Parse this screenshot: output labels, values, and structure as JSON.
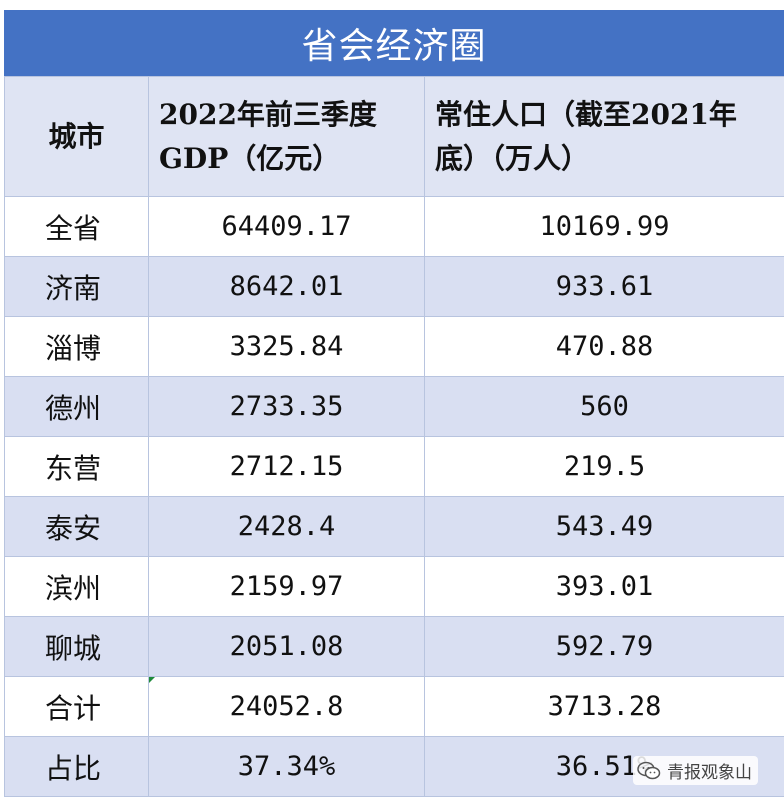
{
  "title": "省会经济圈",
  "headers": {
    "city": "城市",
    "gdp_line1": "2022年前三季度",
    "gdp_line2": "GDP（亿元）",
    "pop_line1": "常住人口（截至2021年",
    "pop_line2": "底）（万人）"
  },
  "rows": [
    {
      "city": "全省",
      "gdp": "64409.17",
      "pop": "10169.99"
    },
    {
      "city": "济南",
      "gdp": "8642.01",
      "pop": "933.61"
    },
    {
      "city": "淄博",
      "gdp": "3325.84",
      "pop": "470.88"
    },
    {
      "city": "德州",
      "gdp": "2733.35",
      "pop": "560"
    },
    {
      "city": "东营",
      "gdp": "2712.15",
      "pop": "219.5"
    },
    {
      "city": "泰安",
      "gdp": "2428.4",
      "pop": "543.49"
    },
    {
      "city": "滨州",
      "gdp": "2159.97",
      "pop": "393.01"
    },
    {
      "city": "聊城",
      "gdp": "2051.08",
      "pop": "592.79"
    },
    {
      "city": "合计",
      "gdp": "24052.8",
      "pop": "3713.28"
    },
    {
      "city": "占比",
      "gdp": "37.34%",
      "pop": "36.51%"
    }
  ],
  "watermark": {
    "text": "青报观象山",
    "icon": "wechat-icon"
  },
  "colors": {
    "title_bg": "#4472c4",
    "band_bg": "#d9dff2",
    "header_bg": "#dfe4f3",
    "grid": "#b8c4df"
  }
}
